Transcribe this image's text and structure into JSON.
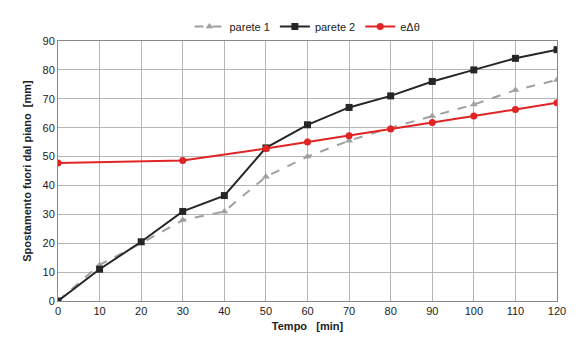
{
  "chart_data": {
    "type": "line",
    "x_label": "Tempo   [min]",
    "y_label": "Spostamento fuori dal piano  [mm]",
    "x": [
      0,
      10,
      20,
      30,
      40,
      50,
      60,
      70,
      80,
      90,
      100,
      110,
      120
    ],
    "series": [
      {
        "name": "parete 1",
        "color": "#a0a0a0",
        "marker": "triangle-up",
        "line_style": "dash",
        "values": [
          0,
          12.5,
          20,
          28,
          31,
          43,
          50,
          55.5,
          60,
          64,
          68,
          73,
          76.5
        ]
      },
      {
        "name": "parete 2",
        "color": "#262626",
        "marker": "square",
        "line_style": "solid",
        "values": [
          0,
          11,
          20.5,
          31,
          36.5,
          53,
          61,
          67,
          71,
          76,
          80,
          84,
          87
        ]
      },
      {
        "name": "eΔθ",
        "color": "#e02424",
        "marker": "circle",
        "line_style": "solid",
        "x": [
          0,
          30,
          50,
          60,
          70,
          80,
          90,
          100,
          110,
          120
        ],
        "values": [
          47.8,
          48.6,
          52.8,
          55,
          57.2,
          59.5,
          61.8,
          64,
          66.3,
          68.6
        ]
      }
    ],
    "xlim": [
      0,
      120
    ],
    "xticks": [
      0,
      10,
      20,
      30,
      40,
      50,
      60,
      70,
      80,
      90,
      100,
      110,
      120
    ],
    "ylim": [
      0,
      90
    ],
    "yticks": [
      0,
      10,
      20,
      30,
      40,
      50,
      60,
      70,
      80,
      90
    ],
    "grid": true,
    "legend": "top"
  }
}
